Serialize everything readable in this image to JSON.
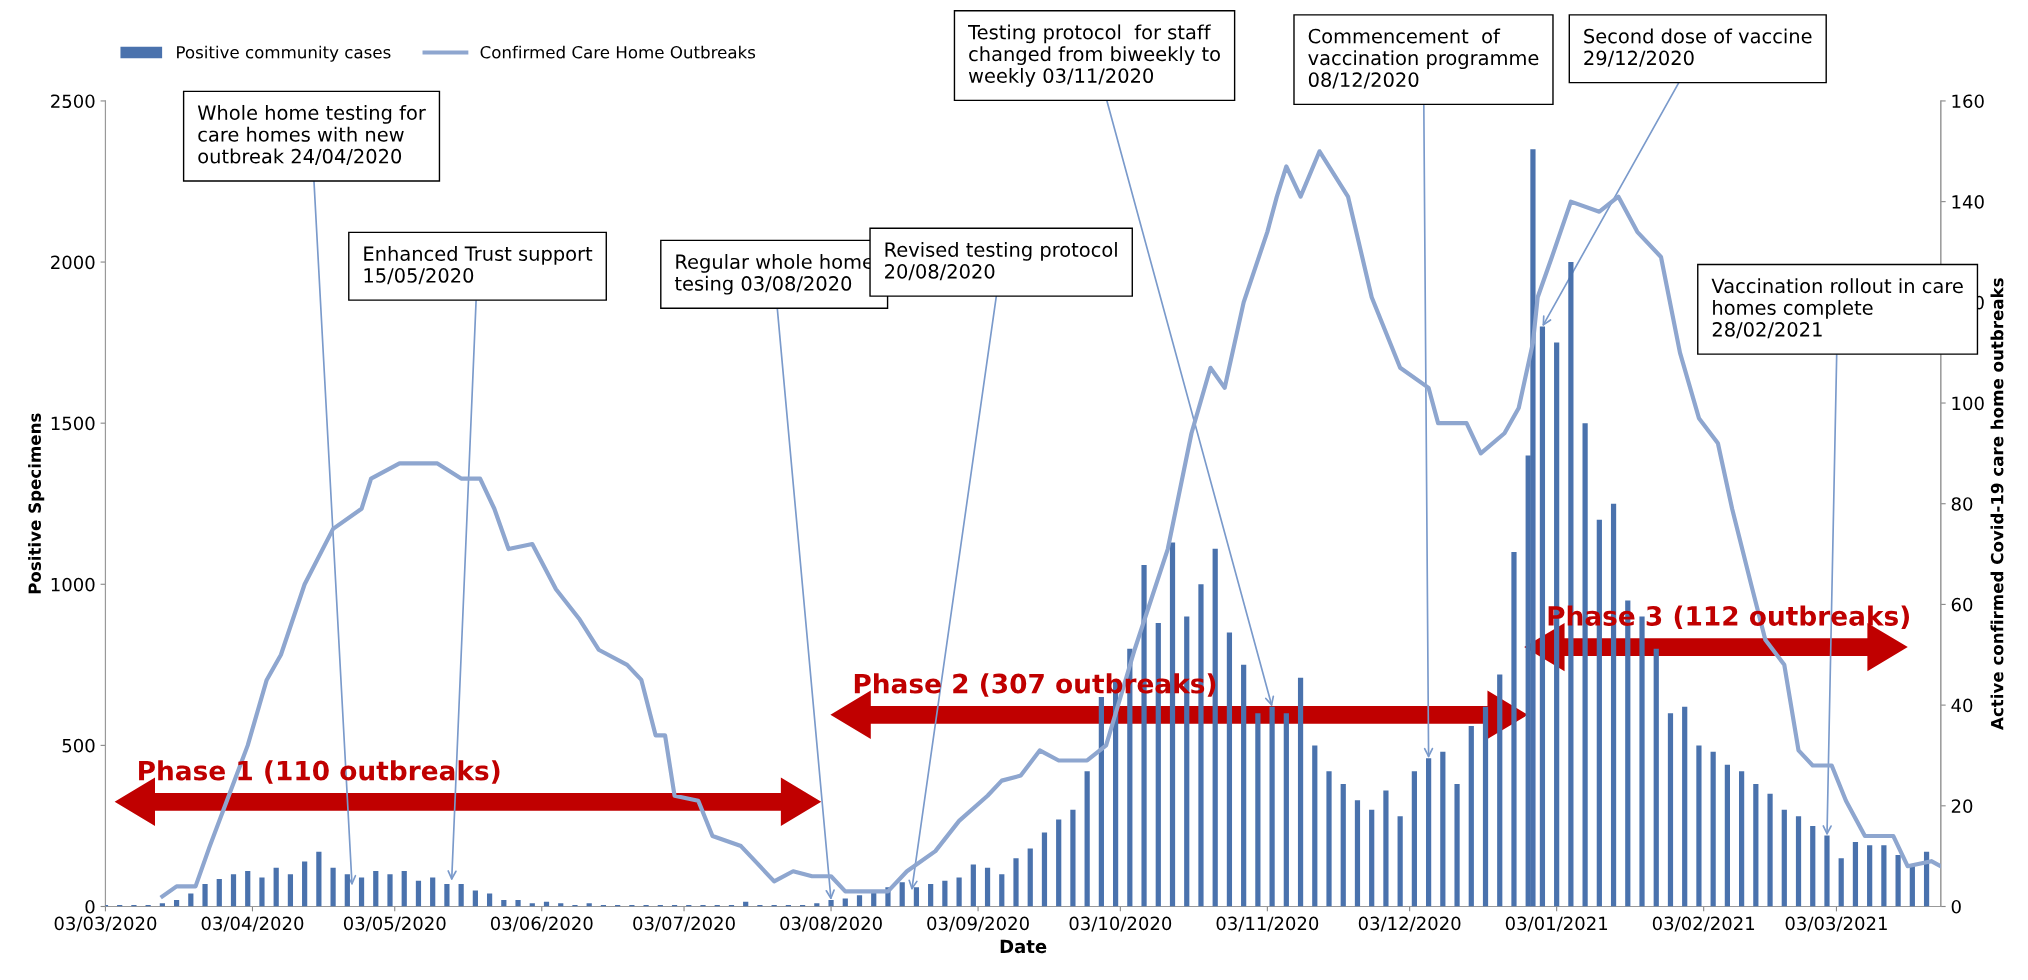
{
  "chart_data": {
    "type": "bar",
    "xlabel": "Date",
    "ylabel": "Positive Specimens",
    "y2label": "Active confirmed Covid-19 care home outbreaks",
    "xlim": [
      "2020-03-03",
      "2021-03-25"
    ],
    "xticks": [
      {
        "value": "2020-03-03",
        "label": "03/03/2020"
      },
      {
        "value": "2020-04-03",
        "label": "03/04/2020"
      },
      {
        "value": "2020-05-03",
        "label": "03/05/2020"
      },
      {
        "value": "2020-06-03",
        "label": "03/06/2020"
      },
      {
        "value": "2020-07-03",
        "label": "03/07/2020"
      },
      {
        "value": "2020-08-03",
        "label": "03/08/2020"
      },
      {
        "value": "2020-09-03",
        "label": "03/09/2020"
      },
      {
        "value": "2020-10-03",
        "label": "03/10/2020"
      },
      {
        "value": "2020-11-03",
        "label": "03/11/2020"
      },
      {
        "value": "2020-12-03",
        "label": "03/12/2020"
      },
      {
        "value": "2021-01-03",
        "label": "03/01/2021"
      },
      {
        "value": "2021-02-03",
        "label": "03/02/2021"
      },
      {
        "value": "2021-03-03",
        "label": "03/03/2021"
      }
    ],
    "ylim": [
      0,
      2500
    ],
    "yticks": [
      0,
      500,
      1000,
      1500,
      2000,
      2500
    ],
    "y2lim": [
      0,
      160
    ],
    "y2ticks": [
      0,
      20,
      40,
      60,
      80,
      100,
      120,
      140,
      160
    ],
    "grid": false,
    "legend": "top left",
    "series": [
      {
        "name": "Positive community cases",
        "color": "#4a72ad",
        "x": [
          "2020-03-03",
          "2020-03-06",
          "2020-03-09",
          "2020-03-12",
          "2020-03-15",
          "2020-03-18",
          "2020-03-21",
          "2020-03-24",
          "2020-03-27",
          "2020-03-30",
          "2020-04-02",
          "2020-04-05",
          "2020-04-08",
          "2020-04-11",
          "2020-04-14",
          "2020-04-17",
          "2020-04-20",
          "2020-04-23",
          "2020-04-26",
          "2020-04-29",
          "2020-05-02",
          "2020-05-05",
          "2020-05-08",
          "2020-05-11",
          "2020-05-14",
          "2020-05-17",
          "2020-05-20",
          "2020-05-23",
          "2020-05-26",
          "2020-05-29",
          "2020-06-01",
          "2020-06-04",
          "2020-06-07",
          "2020-06-10",
          "2020-06-13",
          "2020-06-16",
          "2020-06-19",
          "2020-06-22",
          "2020-06-25",
          "2020-06-28",
          "2020-07-01",
          "2020-07-04",
          "2020-07-07",
          "2020-07-10",
          "2020-07-13",
          "2020-07-16",
          "2020-07-19",
          "2020-07-22",
          "2020-07-25",
          "2020-07-28",
          "2020-07-31",
          "2020-08-03",
          "2020-08-06",
          "2020-08-09",
          "2020-08-12",
          "2020-08-15",
          "2020-08-18",
          "2020-08-21",
          "2020-08-24",
          "2020-08-27",
          "2020-08-30",
          "2020-09-02",
          "2020-09-05",
          "2020-09-08",
          "2020-09-11",
          "2020-09-14",
          "2020-09-17",
          "2020-09-20",
          "2020-09-23",
          "2020-09-26",
          "2020-09-29",
          "2020-10-02",
          "2020-10-05",
          "2020-10-08",
          "2020-10-11",
          "2020-10-14",
          "2020-10-17",
          "2020-10-20",
          "2020-10-23",
          "2020-10-26",
          "2020-10-29",
          "2020-11-01",
          "2020-11-04",
          "2020-11-07",
          "2020-11-10",
          "2020-11-13",
          "2020-11-16",
          "2020-11-19",
          "2020-11-22",
          "2020-11-25",
          "2020-11-28",
          "2020-12-01",
          "2020-12-04",
          "2020-12-07",
          "2020-12-10",
          "2020-12-13",
          "2020-12-16",
          "2020-12-19",
          "2020-12-22",
          "2020-12-25",
          "2020-12-28",
          "2020-12-29",
          "2020-12-31",
          "2021-01-03",
          "2021-01-06",
          "2021-01-09",
          "2021-01-12",
          "2021-01-15",
          "2021-01-18",
          "2021-01-21",
          "2021-01-24",
          "2021-01-27",
          "2021-01-30",
          "2021-02-02",
          "2021-02-05",
          "2021-02-08",
          "2021-02-11",
          "2021-02-14",
          "2021-02-17",
          "2021-02-20",
          "2021-02-23",
          "2021-02-26",
          "2021-03-01",
          "2021-03-04",
          "2021-03-07",
          "2021-03-10",
          "2021-03-13",
          "2021-03-16",
          "2021-03-19",
          "2021-03-22"
        ],
        "values": [
          5,
          5,
          5,
          5,
          10,
          20,
          40,
          70,
          85,
          100,
          110,
          90,
          120,
          100,
          140,
          170,
          120,
          100,
          90,
          110,
          100,
          110,
          80,
          90,
          70,
          70,
          50,
          40,
          20,
          20,
          10,
          15,
          10,
          5,
          10,
          5,
          5,
          5,
          5,
          5,
          5,
          5,
          5,
          5,
          5,
          15,
          5,
          5,
          5,
          5,
          10,
          20,
          25,
          35,
          50,
          60,
          75,
          60,
          70,
          80,
          90,
          130,
          120,
          100,
          150,
          180,
          230,
          270,
          300,
          420,
          650,
          700,
          800,
          1060,
          880,
          1130,
          900,
          1000,
          1110,
          850,
          750,
          600,
          620,
          600,
          710,
          500,
          420,
          380,
          330,
          300,
          360,
          280,
          420,
          460,
          480,
          380,
          560,
          620,
          720,
          1100,
          1400,
          2350,
          1800,
          1750,
          2000,
          1500,
          1200,
          1250,
          950,
          900,
          800,
          600,
          620,
          500,
          480,
          440,
          420,
          380,
          350,
          300,
          280,
          250,
          220,
          150,
          200,
          190,
          190,
          160,
          130,
          170
        ]
      },
      {
        "type": "line",
        "axis": "y2",
        "name": "Confirmed Care Home Outbreaks",
        "color": "#8ea6cf",
        "x": [
          "2020-03-15",
          "2020-03-18",
          "2020-03-22",
          "2020-03-25",
          "2020-03-29",
          "2020-04-02",
          "2020-04-06",
          "2020-04-09",
          "2020-04-14",
          "2020-04-20",
          "2020-04-26",
          "2020-04-28",
          "2020-05-04",
          "2020-05-12",
          "2020-05-17",
          "2020-05-21",
          "2020-05-24",
          "2020-05-27",
          "2020-06-01",
          "2020-06-06",
          "2020-06-11",
          "2020-06-15",
          "2020-06-21",
          "2020-06-24",
          "2020-06-27",
          "2020-06-29",
          "2020-07-01",
          "2020-07-06",
          "2020-07-09",
          "2020-07-15",
          "2020-07-18",
          "2020-07-22",
          "2020-07-26",
          "2020-07-30",
          "2020-08-03",
          "2020-08-06",
          "2020-08-10",
          "2020-08-15",
          "2020-08-19",
          "2020-08-25",
          "2020-08-30",
          "2020-09-05",
          "2020-09-08",
          "2020-09-12",
          "2020-09-16",
          "2020-09-20",
          "2020-09-26",
          "2020-09-30",
          "2020-10-06",
          "2020-10-13",
          "2020-10-18",
          "2020-10-22",
          "2020-10-25",
          "2020-10-29",
          "2020-11-03",
          "2020-11-05",
          "2020-11-07",
          "2020-11-10",
          "2020-11-14",
          "2020-11-20",
          "2020-11-25",
          "2020-12-01",
          "2020-12-07",
          "2020-12-09",
          "2020-12-15",
          "2020-12-18",
          "2020-12-23",
          "2020-12-26",
          "2020-12-29",
          "2020-12-30",
          "2021-01-02",
          "2021-01-06",
          "2021-01-12",
          "2021-01-16",
          "2021-01-20",
          "2021-01-25",
          "2021-01-29",
          "2021-02-02",
          "2021-02-06",
          "2021-02-09",
          "2021-02-13",
          "2021-02-16",
          "2021-02-20",
          "2021-02-23",
          "2021-02-26",
          "2021-03-02",
          "2021-03-05",
          "2021-03-09",
          "2021-03-15",
          "2021-03-18",
          "2021-03-23",
          "2021-03-25"
        ],
        "values": [
          2,
          4,
          4,
          12,
          22,
          32,
          45,
          50,
          64,
          75,
          79,
          85,
          88,
          88,
          85,
          85,
          79,
          71,
          72,
          63,
          57,
          51,
          48,
          45,
          34,
          34,
          22,
          21,
          14,
          12,
          9,
          5,
          7,
          6,
          6,
          3,
          3,
          3,
          7,
          11,
          17,
          22,
          25,
          26,
          31,
          29,
          29,
          32,
          51,
          71,
          94,
          107,
          103,
          120,
          134,
          141,
          147,
          141,
          150,
          141,
          121,
          107,
          103,
          96,
          96,
          90,
          94,
          99,
          112,
          121,
          129,
          140,
          138,
          141,
          134,
          129,
          110,
          97,
          92,
          79,
          64,
          53,
          48,
          31,
          28,
          28,
          21,
          14,
          14,
          8,
          9,
          8
        ]
      }
    ],
    "annotations": [
      {
        "text": "Whole home testing for care homes with new outbreak 24/04/2020",
        "x": "2020-04-24",
        "y": 65
      },
      {
        "text": "Enhanced Trust support 15/05/2020",
        "x": "2020-05-15",
        "y": 80
      },
      {
        "text": "Regular whole home tesing 03/08/2020",
        "x": "2020-08-03",
        "y": 20
      },
      {
        "text": "Revised testing protocol 20/08/2020",
        "x": "2020-08-20",
        "y": 50
      },
      {
        "text": "Testing protocol  for staff changed from biweekly to weekly 03/11/2020",
        "x": "2020-11-04",
        "y": 620
      },
      {
        "text": "Commencement  of vaccination programme 08/12/2020",
        "x": "2020-12-07",
        "y": 460
      },
      {
        "text": "Second dose of vaccine 29/12/2020",
        "x": "2020-12-31",
        "y": 1800
      },
      {
        "text": "Vaccination rollout in care homes complete 28/02/2021",
        "x": "2021-03-01",
        "y": 220
      },
      "Phase 1 (110 outbreaks)",
      "Phase 2 (307 outbreaks)",
      "Phase 3 (112 outbreaks)"
    ]
  }
}
